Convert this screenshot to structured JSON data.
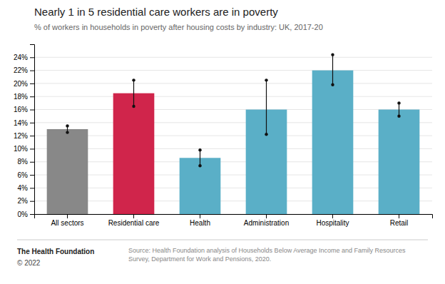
{
  "chart_data": {
    "type": "bar",
    "title": "Nearly 1 in 5 residential care workers are in poverty",
    "subtitle": "% of workers in households in poverty after housing costs by industry: UK, 2017-20",
    "categories": [
      "All sectors",
      "Residential care",
      "Health",
      "Administration",
      "Hospitality",
      "Retail"
    ],
    "values": [
      13.0,
      18.5,
      8.6,
      16.0,
      22.0,
      16.0
    ],
    "errors_lower": [
      0.5,
      2.0,
      1.2,
      3.8,
      2.2,
      1.0
    ],
    "errors_upper": [
      0.5,
      2.0,
      1.2,
      4.5,
      2.4,
      1.0
    ],
    "colors": [
      "#888888",
      "#d0254b",
      "#5aafc7",
      "#5aafc7",
      "#5aafc7",
      "#5aafc7"
    ],
    "ylim": [
      0,
      26
    ],
    "yticks": [
      {
        "value": 0,
        "label": "0%"
      },
      {
        "value": 2,
        "label": "2%"
      },
      {
        "value": 4,
        "label": "4%"
      },
      {
        "value": 6,
        "label": "6%"
      },
      {
        "value": 8,
        "label": "8%"
      },
      {
        "value": 10,
        "label": "10%"
      },
      {
        "value": 12,
        "label": "12%"
      },
      {
        "value": 14,
        "label": "14%"
      },
      {
        "value": 16,
        "label": "16%"
      },
      {
        "value": 18,
        "label": "18%"
      },
      {
        "value": 20,
        "label": "20%"
      },
      {
        "value": 22,
        "label": "22%"
      },
      {
        "value": 24,
        "label": "24%"
      }
    ],
    "grid": true,
    "annotations": [
      "The Health Foundation",
      "© 2022",
      "Source: Health Foundation analysis of Households Below Average Income and Family Resources Survey, Department for Work and Pensions, 2020."
    ]
  }
}
